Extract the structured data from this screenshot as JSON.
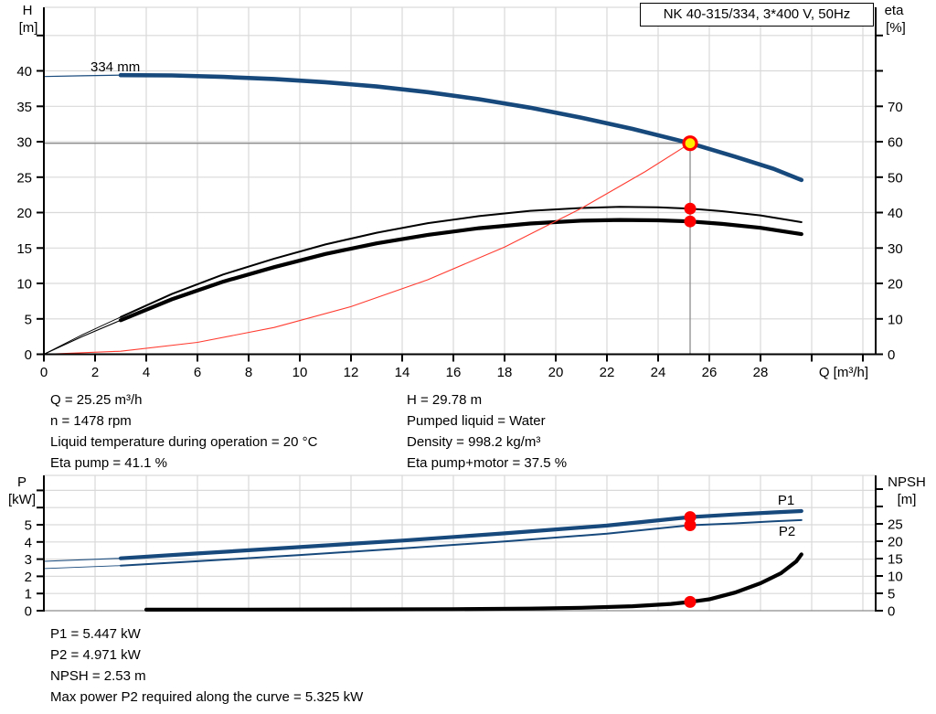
{
  "title_box": "NK 40-315/334, 3*400 V, 50Hz",
  "info_top_left": [
    "Q = 25.25 m³/h",
    "n = 1478 rpm",
    "Liquid temperature during operation = 20 °C",
    "Eta pump = 41.1 %"
  ],
  "info_top_right": [
    "H = 29.78 m",
    "Pumped liquid = Water",
    "Density = 998.2 kg/m³",
    "Eta pump+motor = 37.5 %"
  ],
  "info_bottom": [
    "P1 = 5.447 kW",
    "P2 = 4.971 kW",
    "NPSH = 2.53 m",
    "Max power P2 required along the curve = 5.325 kW"
  ],
  "colors": {
    "curve_blue": "#17497c",
    "curve_black": "#000000",
    "curve_red": "#ff3b30",
    "dot_red": "#ff0000",
    "marker_yellow": "#ffee00",
    "grid": "#d9d9d9",
    "crosshair": "#8c8c8c",
    "axis": "#000000",
    "label_blue": "#2e6395"
  },
  "chart_data": [
    {
      "type": "line",
      "x_axis": {
        "label": "Q [m³/h]",
        "min": 0,
        "max": 32.5,
        "ticks": [
          0,
          2,
          4,
          6,
          8,
          10,
          12,
          14,
          16,
          18,
          20,
          22,
          24,
          26,
          28
        ],
        "ticks_minor": [
          30,
          32
        ],
        "grid": [
          2,
          4,
          6,
          8,
          10,
          12,
          14,
          16,
          18,
          20,
          22,
          24,
          26,
          28,
          30,
          32
        ]
      },
      "left_axis": {
        "title_line1": "H",
        "title_line2": "[m]",
        "min": 0,
        "max": 48.9,
        "ticks": [
          0,
          5,
          10,
          15,
          20,
          25,
          30,
          35,
          40
        ],
        "ticks_minor": [
          45
        ],
        "grid": [
          5,
          10,
          15,
          20,
          25,
          30,
          35,
          40,
          45
        ]
      },
      "right_axis": {
        "title_line1": "eta",
        "title_line2": "[%]",
        "min": 0,
        "max": 97.8,
        "ticks": [
          0,
          10,
          20,
          30,
          40,
          50,
          60,
          70
        ],
        "ticks_minor": [
          80,
          90
        ]
      },
      "series": [
        {
          "name": "H curve 334 mm",
          "label": "334 mm",
          "axis": "left",
          "color_key": "curve_blue",
          "width": 4.6,
          "thin_width": 1.2,
          "thick_from": 3,
          "points": [
            [
              0,
              39.2
            ],
            [
              1.5,
              39.3
            ],
            [
              3,
              39.4
            ],
            [
              5,
              39.35
            ],
            [
              7,
              39.15
            ],
            [
              9,
              38.85
            ],
            [
              11,
              38.4
            ],
            [
              13,
              37.8
            ],
            [
              15,
              37.0
            ],
            [
              17,
              36.0
            ],
            [
              19,
              34.8
            ],
            [
              21,
              33.4
            ],
            [
              23,
              31.8
            ],
            [
              25.25,
              29.78
            ],
            [
              27,
              27.9
            ],
            [
              28.5,
              26.2
            ],
            [
              29.6,
              24.6
            ]
          ]
        },
        {
          "name": "Eta pump",
          "axis": "right",
          "color_key": "curve_black",
          "width": 2.0,
          "thin_width": 0.9,
          "thick_from": 3,
          "points": [
            [
              0,
              0
            ],
            [
              1.5,
              5.5
            ],
            [
              3,
              10.5
            ],
            [
              5,
              17
            ],
            [
              7,
              22.5
            ],
            [
              9,
              27
            ],
            [
              11,
              31
            ],
            [
              13,
              34.3
            ],
            [
              15,
              37
            ],
            [
              17,
              39
            ],
            [
              19,
              40.5
            ],
            [
              21,
              41.3
            ],
            [
              22.5,
              41.6
            ],
            [
              24,
              41.5
            ],
            [
              25.25,
              41.1
            ],
            [
              26.5,
              40.4
            ],
            [
              28,
              39.2
            ],
            [
              29.6,
              37.3
            ]
          ]
        },
        {
          "name": "Eta pump+motor",
          "axis": "right",
          "color_key": "curve_black",
          "width": 4.2,
          "thin_width": 1.1,
          "thick_from": 3,
          "points": [
            [
              0,
              0
            ],
            [
              1.5,
              5.0
            ],
            [
              3,
              9.6
            ],
            [
              5,
              15.5
            ],
            [
              7,
              20.5
            ],
            [
              9,
              24.6
            ],
            [
              11,
              28.3
            ],
            [
              13,
              31.3
            ],
            [
              15,
              33.7
            ],
            [
              17,
              35.6
            ],
            [
              19,
              36.9
            ],
            [
              21,
              37.7
            ],
            [
              22.5,
              37.9
            ],
            [
              24,
              37.8
            ],
            [
              25.25,
              37.5
            ],
            [
              26.5,
              36.8
            ],
            [
              28,
              35.7
            ],
            [
              29.6,
              33.9
            ]
          ]
        },
        {
          "name": "System curve",
          "axis": "left",
          "color_key": "curve_red",
          "width": 1.1,
          "points": [
            [
              0,
              0
            ],
            [
              3,
              0.42
            ],
            [
              6,
              1.68
            ],
            [
              9,
              3.78
            ],
            [
              12,
              6.72
            ],
            [
              15,
              10.51
            ],
            [
              18,
              15.13
            ],
            [
              21,
              20.6
            ],
            [
              23.5,
              25.79
            ],
            [
              25.25,
              29.78
            ]
          ]
        }
      ],
      "duty_point": {
        "q": 25.25,
        "h": 29.78,
        "eta_pump": 41.1,
        "eta_pump_motor": 37.5
      }
    },
    {
      "type": "line",
      "x_axis": {
        "label": "",
        "min": 0,
        "max": 32.5,
        "ticks": [],
        "ticks_minor": [],
        "grid": [
          2,
          4,
          6,
          8,
          10,
          12,
          14,
          16,
          18,
          20,
          22,
          24,
          26,
          28,
          30,
          32
        ]
      },
      "left_axis": {
        "title_line1": "P",
        "title_line2": "[kW]",
        "min": 0,
        "max": 7.9,
        "ticks": [
          0,
          1,
          2,
          3,
          4,
          5
        ],
        "ticks_minor": [
          6,
          7
        ],
        "grid": [
          1,
          2,
          3,
          4,
          5,
          6,
          7
        ]
      },
      "right_axis": {
        "title_line1": "NPSH",
        "title_line2": "[m]",
        "min": 0,
        "max": 38.9,
        "ticks": [
          0,
          5,
          10,
          15,
          20,
          25
        ],
        "ticks_minor": [
          30,
          35
        ]
      },
      "series": [
        {
          "name": "P1",
          "label": "P1",
          "axis": "left",
          "color_key": "curve_blue",
          "width": 4.2,
          "thin_width": 1.1,
          "thick_from": 3,
          "points": [
            [
              0,
              2.87
            ],
            [
              3,
              3.05
            ],
            [
              6,
              3.33
            ],
            [
              10,
              3.7
            ],
            [
              14,
              4.08
            ],
            [
              18,
              4.5
            ],
            [
              22,
              4.95
            ],
            [
              25.25,
              5.447
            ],
            [
              27,
              5.6
            ],
            [
              28.5,
              5.72
            ],
            [
              29.6,
              5.8
            ]
          ]
        },
        {
          "name": "P2",
          "label": "P2",
          "axis": "left",
          "color_key": "curve_blue",
          "width": 2.0,
          "thin_width": 0.9,
          "thick_from": 3,
          "points": [
            [
              0,
              2.45
            ],
            [
              3,
              2.62
            ],
            [
              6,
              2.88
            ],
            [
              10,
              3.24
            ],
            [
              14,
              3.62
            ],
            [
              18,
              4.03
            ],
            [
              22,
              4.48
            ],
            [
              25.25,
              4.971
            ],
            [
              27,
              5.08
            ],
            [
              28.5,
              5.2
            ],
            [
              29.6,
              5.27
            ]
          ]
        },
        {
          "name": "NPSH",
          "axis": "right",
          "color_key": "curve_black",
          "width": 4.2,
          "thin_width": 1.1,
          "thick_from": 3,
          "points": [
            [
              0,
              0.3
            ],
            [
              4,
              0.3
            ],
            [
              8,
              0.32
            ],
            [
              12,
              0.36
            ],
            [
              16,
              0.45
            ],
            [
              19,
              0.6
            ],
            [
              21,
              0.85
            ],
            [
              23,
              1.3
            ],
            [
              24.5,
              1.95
            ],
            [
              25.25,
              2.53
            ],
            [
              26,
              3.3
            ],
            [
              27,
              5.2
            ],
            [
              28,
              7.9
            ],
            [
              28.8,
              10.8
            ],
            [
              29.4,
              14.2
            ],
            [
              29.6,
              16.2
            ]
          ]
        }
      ],
      "duty_point": {
        "q": 25.25,
        "p1": 5.447,
        "p2": 4.971,
        "npsh": 2.53
      }
    }
  ]
}
